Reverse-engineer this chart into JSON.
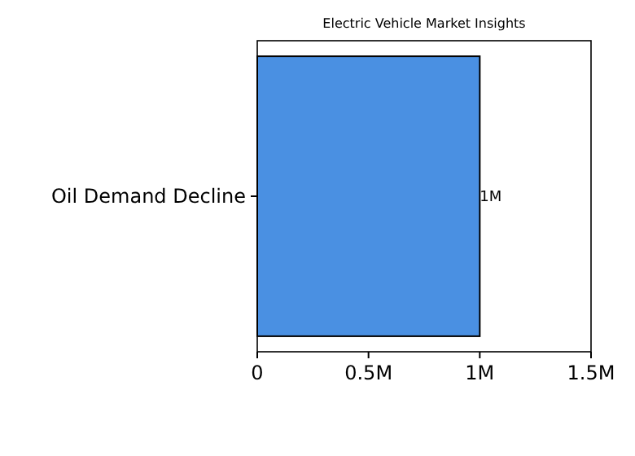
{
  "chart_data": {
    "type": "bar",
    "orientation": "horizontal",
    "title": "Electric Vehicle Market Insights",
    "categories": [
      "Oil Demand Decline"
    ],
    "values": [
      1
    ],
    "color": "#4a90e2",
    "value_labels": [
      "1M"
    ],
    "xlim": [
      0,
      1.5
    ],
    "xticks": [
      {
        "value": 0,
        "label": "0"
      },
      {
        "value": 0.5,
        "label": "0.5M"
      },
      {
        "value": 1,
        "label": "1M"
      },
      {
        "value": 1.5,
        "label": "1.5M"
      }
    ],
    "grid": false
  }
}
